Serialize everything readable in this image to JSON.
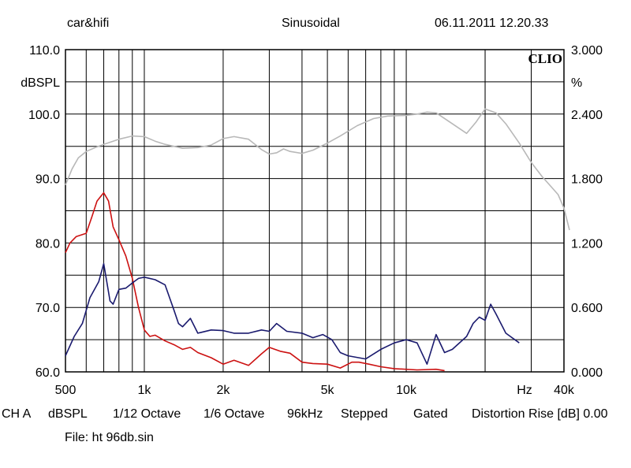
{
  "header": {
    "brand": "car&hifi",
    "mode": "Sinusoidal",
    "datetime": "06.11.2011 12.20.33",
    "logo": "CLIO"
  },
  "footer": {
    "channel": "CH A",
    "unit": "dBSPL",
    "smoothing_1": "1/12 Octave",
    "smoothing_2": "1/6 Octave",
    "rate": "96kHz",
    "mode": "Stepped",
    "gating": "Gated",
    "distortion": "Distortion Rise [dB] 0.00",
    "file": "File: ht 96db.sin"
  },
  "chart_data": {
    "type": "line",
    "x_scale": "log",
    "xlim": [
      500,
      40000
    ],
    "x_tick_labels": [
      "500",
      "1k",
      "2k",
      "5k",
      "10k",
      "Hz",
      "40k"
    ],
    "ylabel_left": "dBSPL",
    "ylim_left": [
      60,
      110
    ],
    "y_ticks_left": [
      "60.0",
      "70.0",
      "80.0",
      "90.0",
      "100.0",
      "110.0"
    ],
    "ylabel_right": "%",
    "ylim_right": [
      0,
      3
    ],
    "y_ticks_right": [
      "0.000",
      "0.600",
      "1.200",
      "1.800",
      "2.400",
      "3.000"
    ],
    "grid": true,
    "colors": {
      "gray": "#b8b8b8",
      "red": "#cc1111",
      "blue": "#1a1a6e"
    },
    "series": [
      {
        "color": "gray",
        "axis": "left",
        "points": [
          [
            500,
            89
          ],
          [
            530,
            91.5
          ],
          [
            560,
            93.2
          ],
          [
            600,
            94.2
          ],
          [
            650,
            94.8
          ],
          [
            700,
            95.3
          ],
          [
            800,
            96.1
          ],
          [
            900,
            96.6
          ],
          [
            1000,
            96.5
          ],
          [
            1100,
            95.8
          ],
          [
            1200,
            95.3
          ],
          [
            1400,
            94.7
          ],
          [
            1600,
            94.8
          ],
          [
            1800,
            95.2
          ],
          [
            2000,
            96.2
          ],
          [
            2200,
            96.5
          ],
          [
            2500,
            96.1
          ],
          [
            2800,
            94.5
          ],
          [
            3000,
            93.8
          ],
          [
            3200,
            94
          ],
          [
            3400,
            94.6
          ],
          [
            3600,
            94.2
          ],
          [
            4000,
            93.9
          ],
          [
            4400,
            94.4
          ],
          [
            5000,
            95.5
          ],
          [
            5600,
            96.6
          ],
          [
            6500,
            98.2
          ],
          [
            7500,
            99.3
          ],
          [
            8500,
            99.7
          ],
          [
            10000,
            99.8
          ],
          [
            11000,
            100
          ],
          [
            12000,
            100.3
          ],
          [
            13000,
            100.2
          ],
          [
            15000,
            98.5
          ],
          [
            17000,
            97
          ],
          [
            18500,
            98.8
          ],
          [
            20000,
            100.8
          ],
          [
            22000,
            100.2
          ],
          [
            24000,
            98.5
          ],
          [
            27000,
            95.5
          ],
          [
            30000,
            92.5
          ],
          [
            33000,
            90.3
          ],
          [
            36000,
            88.6
          ],
          [
            38000,
            87.5
          ],
          [
            40000,
            85.4
          ],
          [
            42000,
            82
          ]
        ]
      },
      {
        "color": "red",
        "axis": "left",
        "points": [
          [
            500,
            78.5
          ],
          [
            520,
            80
          ],
          [
            550,
            81
          ],
          [
            600,
            81.5
          ],
          [
            630,
            84
          ],
          [
            660,
            86.5
          ],
          [
            700,
            87.8
          ],
          [
            730,
            86.5
          ],
          [
            760,
            82.5
          ],
          [
            800,
            80.5
          ],
          [
            850,
            78
          ],
          [
            900,
            74.5
          ],
          [
            950,
            70
          ],
          [
            1000,
            66.5
          ],
          [
            1050,
            65.5
          ],
          [
            1100,
            65.7
          ],
          [
            1200,
            64.8
          ],
          [
            1300,
            64.2
          ],
          [
            1400,
            63.5
          ],
          [
            1500,
            63.8
          ],
          [
            1600,
            63
          ],
          [
            1800,
            62.2
          ],
          [
            2000,
            61.2
          ],
          [
            2200,
            61.8
          ],
          [
            2500,
            61
          ],
          [
            2800,
            62.8
          ],
          [
            3000,
            63.8
          ],
          [
            3300,
            63.2
          ],
          [
            3600,
            62.9
          ],
          [
            4000,
            61.5
          ],
          [
            4400,
            61.3
          ],
          [
            5000,
            61.2
          ],
          [
            5600,
            60.6
          ],
          [
            6200,
            61.5
          ],
          [
            6600,
            61.5
          ],
          [
            7200,
            61.2
          ],
          [
            8000,
            60.8
          ],
          [
            9000,
            60.5
          ],
          [
            11000,
            60.3
          ],
          [
            13000,
            60.4
          ],
          [
            14000,
            60.2
          ]
        ]
      },
      {
        "color": "blue",
        "axis": "left",
        "points": [
          [
            500,
            62.5
          ],
          [
            540,
            65.5
          ],
          [
            580,
            67.5
          ],
          [
            620,
            71.5
          ],
          [
            670,
            74
          ],
          [
            700,
            76.8
          ],
          [
            740,
            71
          ],
          [
            760,
            70.5
          ],
          [
            800,
            72.8
          ],
          [
            850,
            73
          ],
          [
            900,
            73.8
          ],
          [
            950,
            74.5
          ],
          [
            1000,
            74.7
          ],
          [
            1100,
            74.3
          ],
          [
            1200,
            73.5
          ],
          [
            1300,
            69.5
          ],
          [
            1350,
            67.5
          ],
          [
            1400,
            67
          ],
          [
            1500,
            68.3
          ],
          [
            1600,
            66
          ],
          [
            1800,
            66.5
          ],
          [
            2000,
            66.4
          ],
          [
            2200,
            66
          ],
          [
            2500,
            66
          ],
          [
            2800,
            66.5
          ],
          [
            3000,
            66.3
          ],
          [
            3200,
            67.5
          ],
          [
            3500,
            66.3
          ],
          [
            4000,
            66
          ],
          [
            4400,
            65.3
          ],
          [
            4800,
            65.8
          ],
          [
            5200,
            65
          ],
          [
            5600,
            63
          ],
          [
            6000,
            62.5
          ],
          [
            7000,
            62
          ],
          [
            8000,
            63.5
          ],
          [
            9000,
            64.5
          ],
          [
            10000,
            65
          ],
          [
            11000,
            64.5
          ],
          [
            12000,
            61.2
          ],
          [
            13000,
            65.8
          ],
          [
            14000,
            63
          ],
          [
            15000,
            63.5
          ],
          [
            17000,
            65.5
          ],
          [
            18000,
            67.5
          ],
          [
            19000,
            68.5
          ],
          [
            20000,
            68
          ],
          [
            21000,
            70.5
          ],
          [
            22000,
            69
          ],
          [
            24000,
            66
          ],
          [
            27000,
            64.5
          ]
        ]
      }
    ]
  }
}
